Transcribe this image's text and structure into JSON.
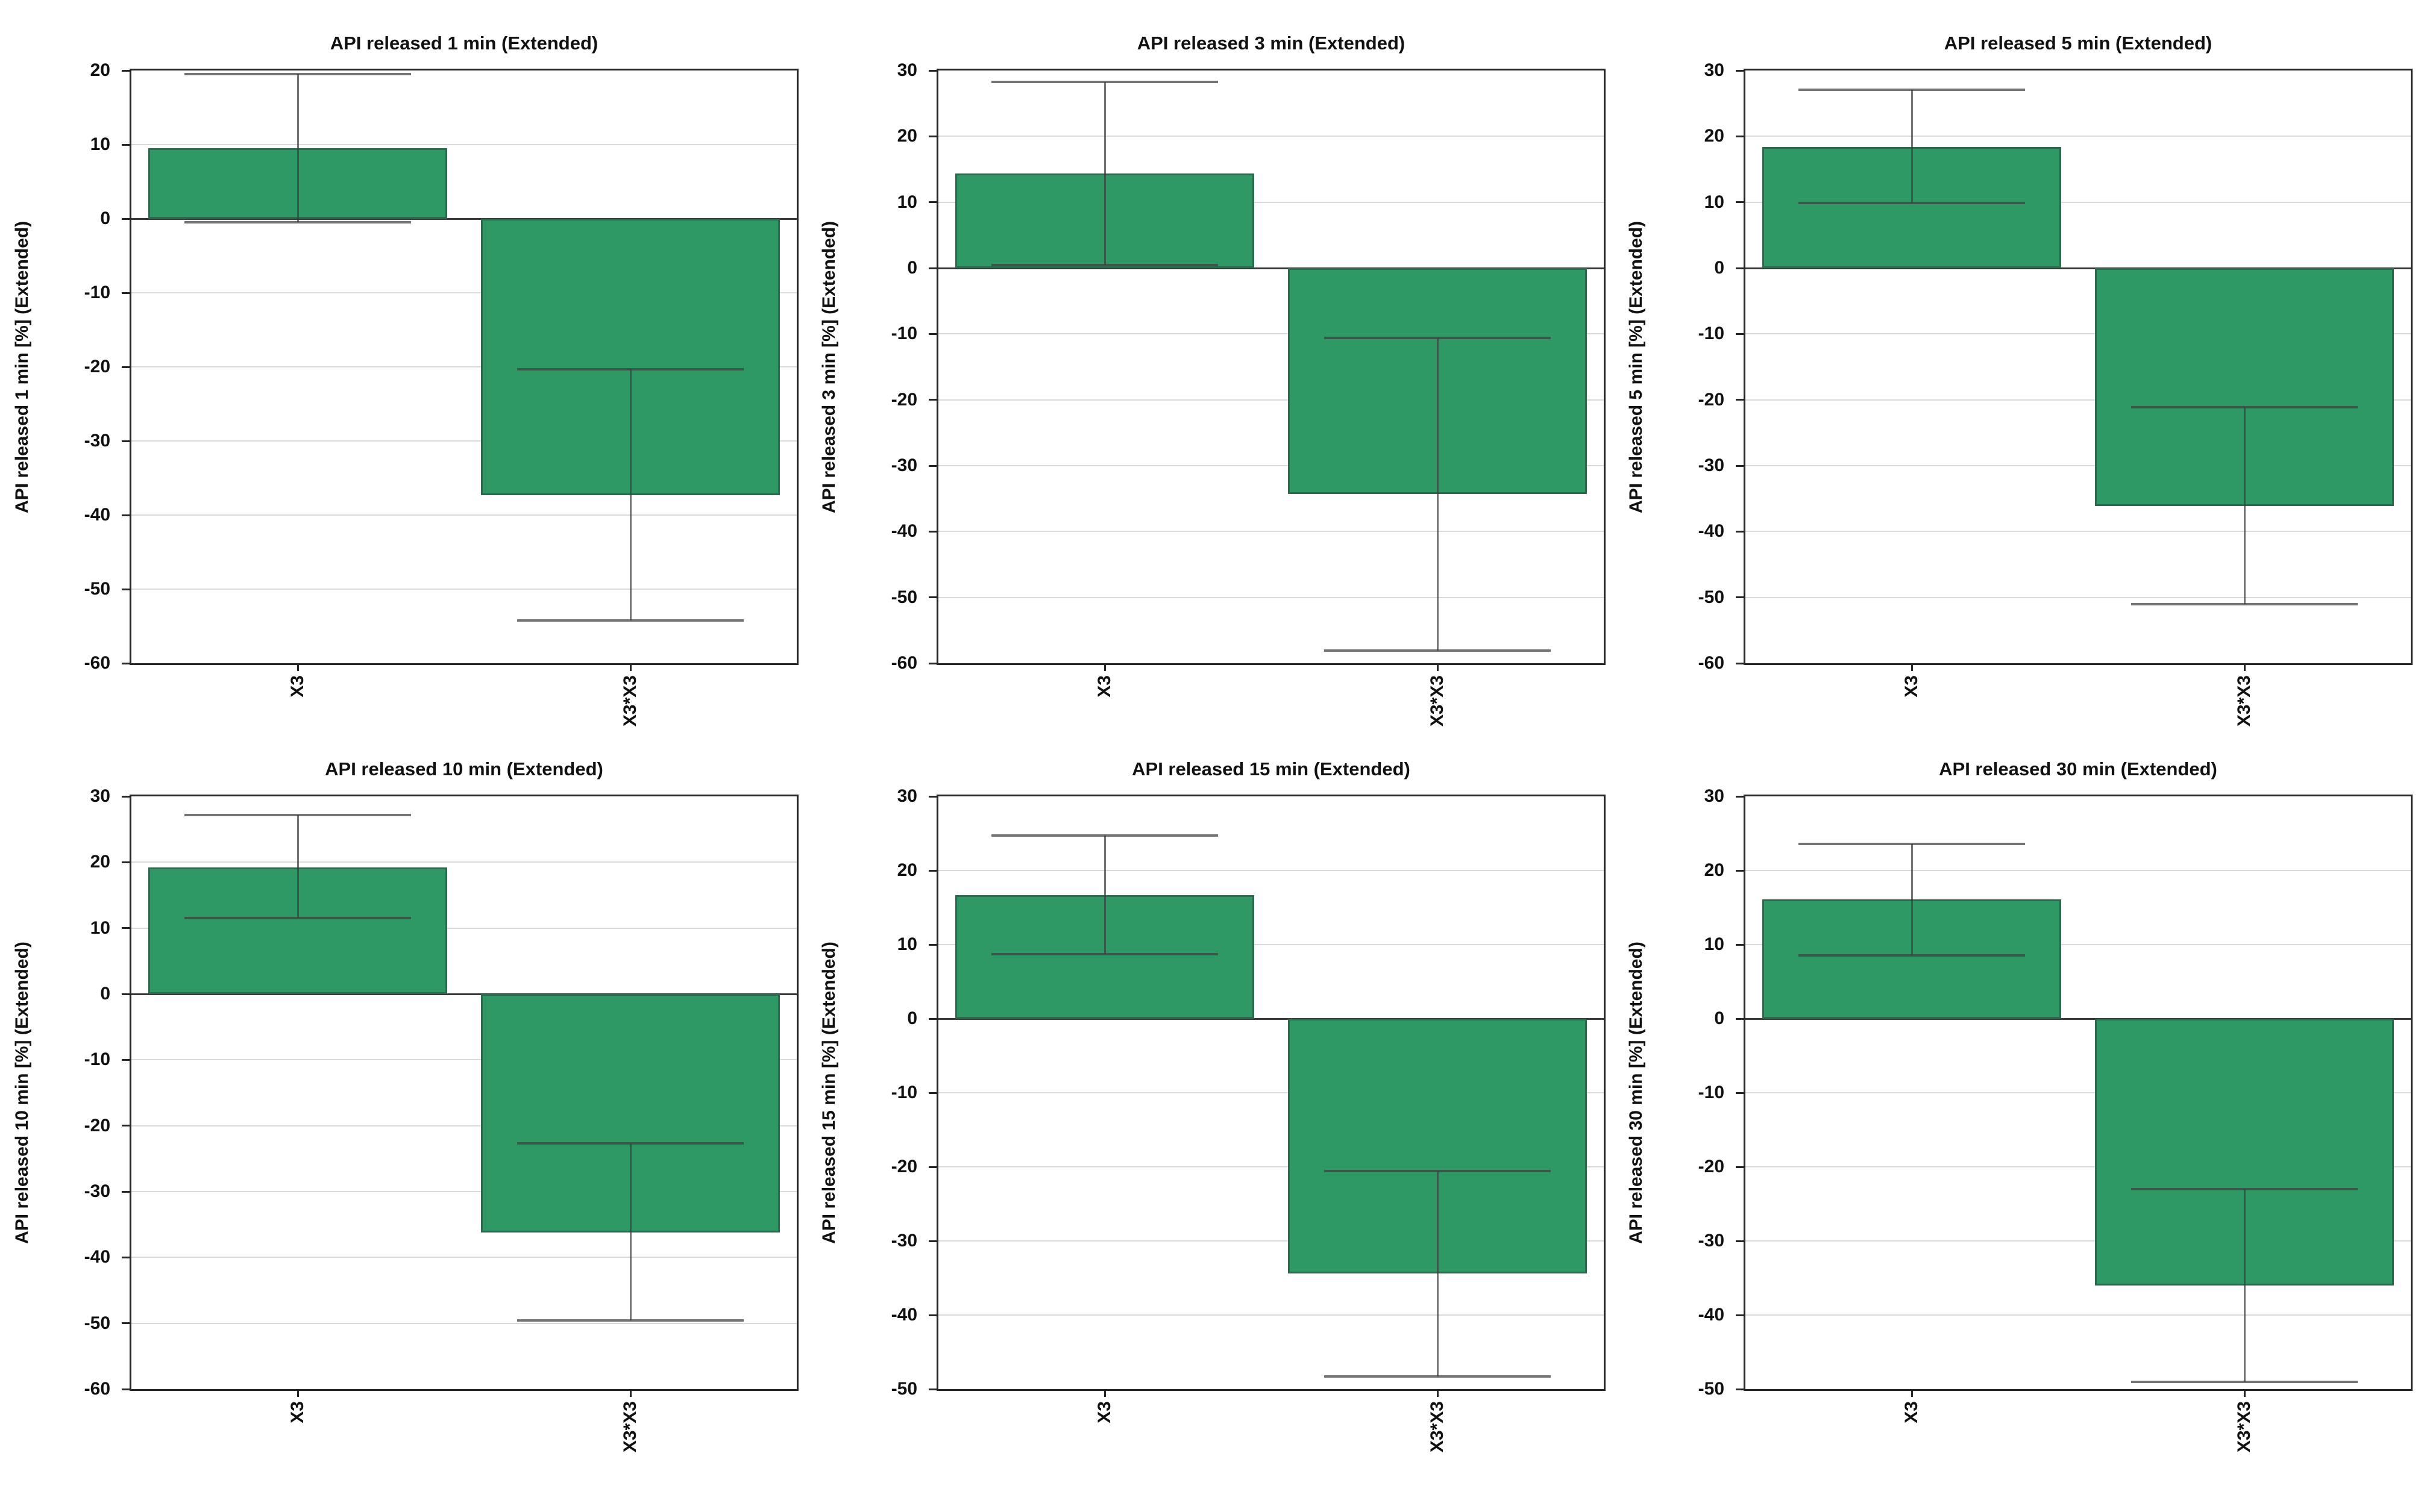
{
  "figure": {
    "kind": "effect-plot grid",
    "rows": 2,
    "columns": 3
  },
  "colors": {
    "background": "#ffffff",
    "bar_fill": "#2f9966",
    "bar_border": "#2d6a4d",
    "grid_line": "#d9d9d9",
    "zero_line": "#3a3a3a",
    "axis_frame": "#262626",
    "error_bar": "#3f3f3f",
    "text": "#111111"
  },
  "chart_data": [
    {
      "type": "bar",
      "title": "API released 1 min (Extended)",
      "ylabel": "API released 1 min [%] (Extended)",
      "xlabel": "",
      "categories": [
        "X3",
        "X3*X3"
      ],
      "values": [
        9.5,
        -37.3
      ],
      "error_low": [
        -0.5,
        -54.2
      ],
      "error_high": [
        19.5,
        -20.3
      ],
      "ylim": [
        -60,
        20
      ],
      "yticks": [
        20,
        10,
        0,
        -10,
        -20,
        -30,
        -40,
        -50,
        -60
      ],
      "grid": true,
      "legend_position": "none"
    },
    {
      "type": "bar",
      "title": "API released 3 min (Extended)",
      "ylabel": "API released 3 min [%] (Extended)",
      "xlabel": "",
      "categories": [
        "X3",
        "X3*X3"
      ],
      "values": [
        14.4,
        -34.3
      ],
      "error_low": [
        0.5,
        -58.1
      ],
      "error_high": [
        28.3,
        -10.6
      ],
      "ylim": [
        -60,
        30
      ],
      "yticks": [
        30,
        20,
        10,
        0,
        -10,
        -20,
        -30,
        -40,
        -50,
        -60
      ],
      "grid": true,
      "legend_position": "none"
    },
    {
      "type": "bar",
      "title": "API released 5 min (Extended)",
      "ylabel": "API released 5 min [%] (Extended)",
      "xlabel": "",
      "categories": [
        "X3",
        "X3*X3"
      ],
      "values": [
        18.4,
        -36.1
      ],
      "error_low": [
        9.9,
        -51.0
      ],
      "error_high": [
        27.1,
        -21.1
      ],
      "ylim": [
        -60,
        30
      ],
      "yticks": [
        30,
        20,
        10,
        0,
        -10,
        -20,
        -30,
        -40,
        -50,
        -60
      ],
      "grid": true,
      "legend_position": "none"
    },
    {
      "type": "bar",
      "title": "API released 10 min (Extended)",
      "ylabel": "API released 10 min [%] (Extended)",
      "xlabel": "",
      "categories": [
        "X3",
        "X3*X3"
      ],
      "values": [
        19.2,
        -36.2
      ],
      "error_low": [
        11.5,
        -49.6
      ],
      "error_high": [
        27.2,
        -22.7
      ],
      "ylim": [
        -60,
        30
      ],
      "yticks": [
        30,
        20,
        10,
        0,
        -10,
        -20,
        -30,
        -40,
        -50,
        -60
      ],
      "grid": true,
      "legend_position": "none"
    },
    {
      "type": "bar",
      "title": "API released 15 min (Extended)",
      "ylabel": "API released 15 min [%] (Extended)",
      "xlabel": "",
      "categories": [
        "X3",
        "X3*X3"
      ],
      "values": [
        16.7,
        -34.4
      ],
      "error_low": [
        8.7,
        -48.3
      ],
      "error_high": [
        24.7,
        -20.6
      ],
      "ylim": [
        -50,
        30
      ],
      "yticks": [
        30,
        20,
        10,
        0,
        -10,
        -20,
        -30,
        -40,
        -50
      ],
      "grid": true,
      "legend_position": "none"
    },
    {
      "type": "bar",
      "title": "API released 30 min (Extended)",
      "ylabel": "API released 30 min [%] (Extended)",
      "xlabel": "",
      "categories": [
        "X3",
        "X3*X3"
      ],
      "values": [
        16.1,
        -36.0
      ],
      "error_low": [
        8.5,
        -49.0
      ],
      "error_high": [
        23.6,
        -23.0
      ],
      "ylim": [
        -50,
        30
      ],
      "yticks": [
        30,
        20,
        10,
        0,
        -10,
        -20,
        -30,
        -40,
        -50
      ],
      "grid": true,
      "legend_position": "none"
    }
  ]
}
